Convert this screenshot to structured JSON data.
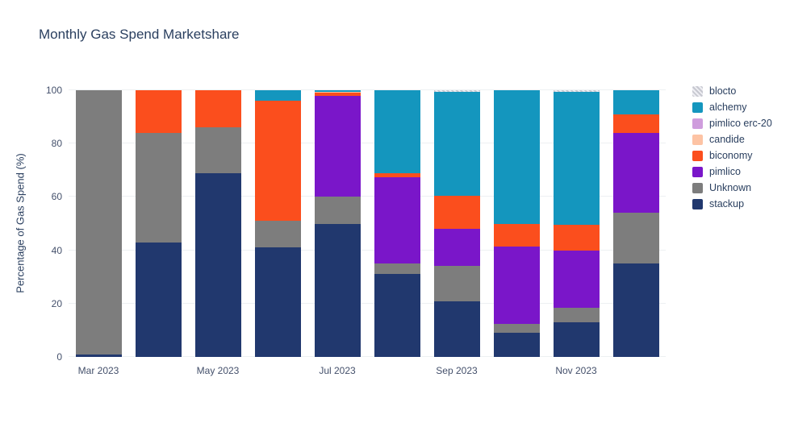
{
  "title": "Monthly Gas Spend Marketshare",
  "y_axis": {
    "label": "Percentage of Gas Spend (%)",
    "ticks": [
      0,
      20,
      40,
      60,
      80,
      100
    ]
  },
  "x_axis": {
    "shown_ticks": [
      {
        "label": "Mar 2023",
        "index": 0
      },
      {
        "label": "May 2023",
        "index": 2
      },
      {
        "label": "Jul 2023",
        "index": 4
      },
      {
        "label": "Sep 2023",
        "index": 6
      },
      {
        "label": "Nov 2023",
        "index": 8
      }
    ]
  },
  "legend": {
    "position": "right",
    "items": [
      {
        "label": "blocto",
        "color": "#d9dade",
        "pattern": true
      },
      {
        "label": "alchemy",
        "color": "#1496be",
        "pattern": false
      },
      {
        "label": "pimlico erc-20",
        "color": "#cf9ddd",
        "pattern": false
      },
      {
        "label": "candide",
        "color": "#fdc3a4",
        "pattern": false
      },
      {
        "label": "biconomy",
        "color": "#fb4e1d",
        "pattern": false
      },
      {
        "label": "pimlico",
        "color": "#7a16c9",
        "pattern": false
      },
      {
        "label": "Unknown",
        "color": "#7d7d7d",
        "pattern": false
      },
      {
        "label": "stackup",
        "color": "#21386e",
        "pattern": false
      }
    ]
  },
  "chart_data": {
    "type": "bar",
    "stacked": true,
    "title": "Monthly Gas Spend Marketshare",
    "xlabel": "",
    "ylabel": "Percentage of Gas Spend (%)",
    "ylim": [
      0,
      100
    ],
    "grid": true,
    "legend_position": "right",
    "categories": [
      "Mar 2023",
      "Apr 2023",
      "May 2023",
      "Jun 2023",
      "Jul 2023",
      "Aug 2023",
      "Sep 2023",
      "Oct 2023",
      "Nov 2023",
      "Dec 2023"
    ],
    "series_bottom_to_top": [
      {
        "name": "stackup",
        "color": "#21386e",
        "pattern": false,
        "values": [
          1,
          43,
          69,
          41,
          50,
          31,
          21,
          9,
          13,
          35
        ]
      },
      {
        "name": "Unknown",
        "color": "#7d7d7d",
        "pattern": false,
        "values": [
          99,
          41,
          17,
          10,
          10,
          4,
          13,
          3.5,
          5.5,
          19
        ]
      },
      {
        "name": "pimlico",
        "color": "#7a16c9",
        "pattern": false,
        "values": [
          0,
          0,
          0,
          0,
          38,
          32.5,
          14,
          29,
          21.5,
          30
        ]
      },
      {
        "name": "biconomy",
        "color": "#fb4e1d",
        "pattern": false,
        "values": [
          0,
          16,
          14,
          45,
          1,
          1.5,
          12.5,
          8.5,
          9.5,
          7
        ]
      },
      {
        "name": "candide",
        "color": "#fdc3a4",
        "pattern": false,
        "values": [
          0,
          0,
          0,
          0,
          0.5,
          0,
          0,
          0,
          0,
          0
        ]
      },
      {
        "name": "pimlico erc-20",
        "color": "#cf9ddd",
        "pattern": false,
        "values": [
          0,
          0,
          0,
          0,
          0,
          0,
          0,
          0,
          0,
          0
        ]
      },
      {
        "name": "alchemy",
        "color": "#1496be",
        "pattern": false,
        "values": [
          0,
          0,
          0,
          4,
          0.5,
          31,
          39,
          50,
          50,
          9
        ]
      },
      {
        "name": "blocto",
        "color": "#d9dade",
        "pattern": true,
        "values": [
          0,
          0,
          0,
          0,
          0,
          0,
          0.5,
          0,
          0.5,
          0
        ]
      }
    ]
  }
}
